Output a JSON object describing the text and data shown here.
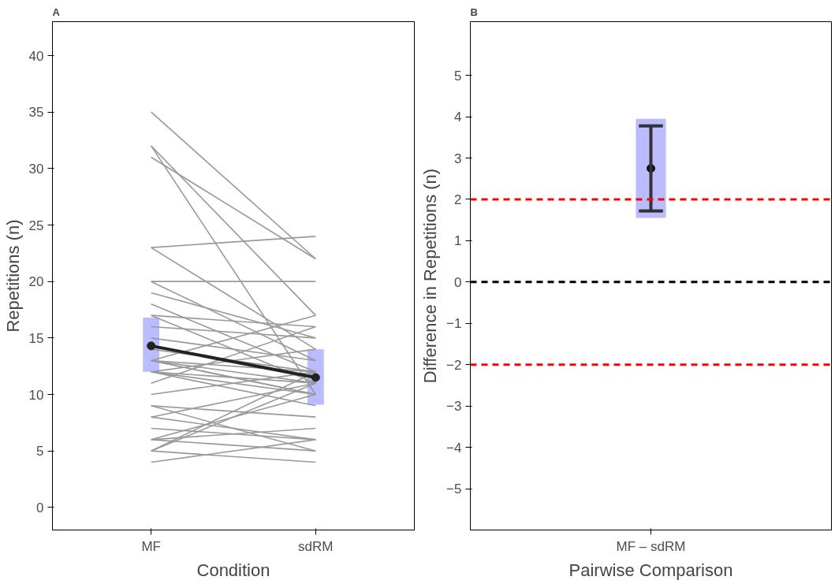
{
  "chart_data": [
    {
      "type": "line",
      "title": "A",
      "xlabel": "Condition",
      "ylabel": "Repetitions (n)",
      "categories": [
        "MF",
        "sdRM"
      ],
      "ylim": [
        -2,
        43
      ],
      "yticks": [
        0,
        5,
        10,
        15,
        20,
        25,
        30,
        35,
        40
      ],
      "grid": false,
      "marker": "none",
      "line_style": "solid",
      "series": [
        {
          "type": "bar",
          "color": "#bbbbff",
          "base": [
            12,
            9.1
          ],
          "values": [
            4.8,
            4.9
          ]
        },
        {
          "color": "#999999",
          "values": [
            35,
            22
          ]
        },
        {
          "color": "#999999",
          "values": [
            32,
            10
          ]
        },
        {
          "color": "#999999",
          "values": [
            32,
            17
          ]
        },
        {
          "color": "#999999",
          "values": [
            31,
            22
          ]
        },
        {
          "color": "#999999",
          "values": [
            23,
            24
          ]
        },
        {
          "color": "#999999",
          "values": [
            23,
            14
          ]
        },
        {
          "color": "#999999",
          "values": [
            20,
            20
          ]
        },
        {
          "color": "#999999",
          "values": [
            20,
            13
          ]
        },
        {
          "color": "#999999",
          "values": [
            19,
            15
          ]
        },
        {
          "color": "#999999",
          "values": [
            18,
            12
          ]
        },
        {
          "color": "#999999",
          "values": [
            17,
            16
          ]
        },
        {
          "color": "#999999",
          "values": [
            17,
            11
          ]
        },
        {
          "color": "#999999",
          "values": [
            16,
            15
          ]
        },
        {
          "color": "#999999",
          "values": [
            15,
            13
          ]
        },
        {
          "color": "#999999",
          "values": [
            14,
            12
          ]
        },
        {
          "color": "#999999",
          "values": [
            13,
            11
          ]
        },
        {
          "color": "#999999",
          "values": [
            13,
            10
          ]
        },
        {
          "color": "#999999",
          "values": [
            13,
            12
          ]
        },
        {
          "color": "#999999",
          "values": [
            13,
            17
          ]
        },
        {
          "color": "#999999",
          "values": [
            13,
            10
          ]
        },
        {
          "color": "#999999",
          "values": [
            12,
            11
          ]
        },
        {
          "color": "#999999",
          "values": [
            12,
            14
          ]
        },
        {
          "color": "#999999",
          "values": [
            12,
            10
          ]
        },
        {
          "color": "#999999",
          "values": [
            12,
            9
          ]
        },
        {
          "color": "#999999",
          "values": [
            11,
            16
          ]
        },
        {
          "color": "#999999",
          "values": [
            10,
            12
          ]
        },
        {
          "color": "#999999",
          "values": [
            9,
            5
          ]
        },
        {
          "color": "#999999",
          "values": [
            9,
            8
          ]
        },
        {
          "color": "#999999",
          "values": [
            8,
            6
          ]
        },
        {
          "color": "#999999",
          "values": [
            8,
            11
          ]
        },
        {
          "color": "#999999",
          "values": [
            7,
            6
          ]
        },
        {
          "color": "#999999",
          "values": [
            6,
            5
          ]
        },
        {
          "color": "#999999",
          "values": [
            6,
            10
          ]
        },
        {
          "color": "#999999",
          "values": [
            6,
            7
          ]
        },
        {
          "color": "#999999",
          "values": [
            5,
            11
          ]
        },
        {
          "color": "#999999",
          "values": [
            5,
            4
          ]
        },
        {
          "color": "#999999",
          "values": [
            4,
            6
          ]
        },
        {
          "color": "#999999",
          "values": [
            5,
            12
          ]
        },
        {
          "color": "#222222",
          "values": [
            14.3,
            11.5
          ],
          "marker": "circle"
        }
      ]
    },
    {
      "type": "scatter",
      "title": "B",
      "xlabel": "Pairwise Comparison",
      "ylabel": "Difference in Repetitions (n)",
      "categories": [
        "MF – sdRM"
      ],
      "ylim": [
        -6,
        6.3
      ],
      "yticks": [
        {
          "value": -5,
          "label": "−5"
        },
        {
          "value": -4,
          "label": "−4"
        },
        {
          "value": -3,
          "label": "−3"
        },
        {
          "value": -2,
          "label": "−2"
        },
        {
          "value": -1,
          "label": "−1"
        },
        0,
        1,
        2,
        3,
        4,
        5
      ],
      "grid": false,
      "marker": "circle",
      "ref_lines": [
        {
          "axis": "y",
          "value": 2,
          "color": "#ff0000",
          "line_style": "dashed"
        },
        {
          "axis": "y",
          "value": 0,
          "color": "#000000",
          "line_style": "dashed"
        },
        {
          "axis": "y",
          "value": -2,
          "color": "#ff0000",
          "line_style": "dashed"
        }
      ],
      "series": [
        {
          "type": "bar",
          "color": "#bbbbff",
          "base": [
            1.55
          ],
          "values": [
            2.4
          ]
        },
        {
          "color": "#111111",
          "values": [
            2.75
          ],
          "errors": [
            [
              1.72,
              3.78
            ]
          ]
        }
      ]
    }
  ]
}
